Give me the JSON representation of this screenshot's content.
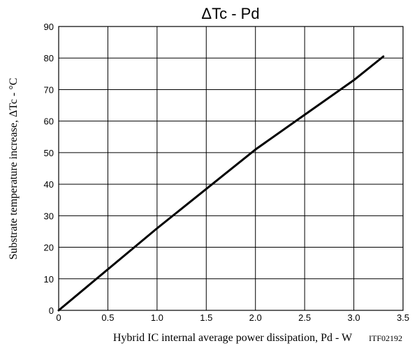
{
  "chart_data": {
    "type": "line",
    "title": "ΔTc - Pd",
    "xlabel": "Hybrid IC internal average power dissipation, Pd - W",
    "ylabel": "Substrate temperature increase, ΔTc - °C",
    "figure_code": "ITF02192",
    "xlim": [
      0,
      3.5
    ],
    "ylim": [
      0,
      90
    ],
    "x_ticks": [
      "0",
      "0.5",
      "1.0",
      "1.5",
      "2.0",
      "2.5",
      "3.0",
      "3.5"
    ],
    "y_ticks": [
      "0",
      "10",
      "20",
      "30",
      "40",
      "50",
      "60",
      "70",
      "80",
      "90"
    ],
    "grid": true,
    "series": [
      {
        "x": [
          0,
          0.5,
          1.0,
          1.5,
          2.0,
          2.5,
          3.0,
          3.3
        ],
        "y": [
          0,
          13,
          26,
          38.5,
          51,
          62,
          73,
          80.5
        ]
      }
    ],
    "line_color": "#000000"
  }
}
